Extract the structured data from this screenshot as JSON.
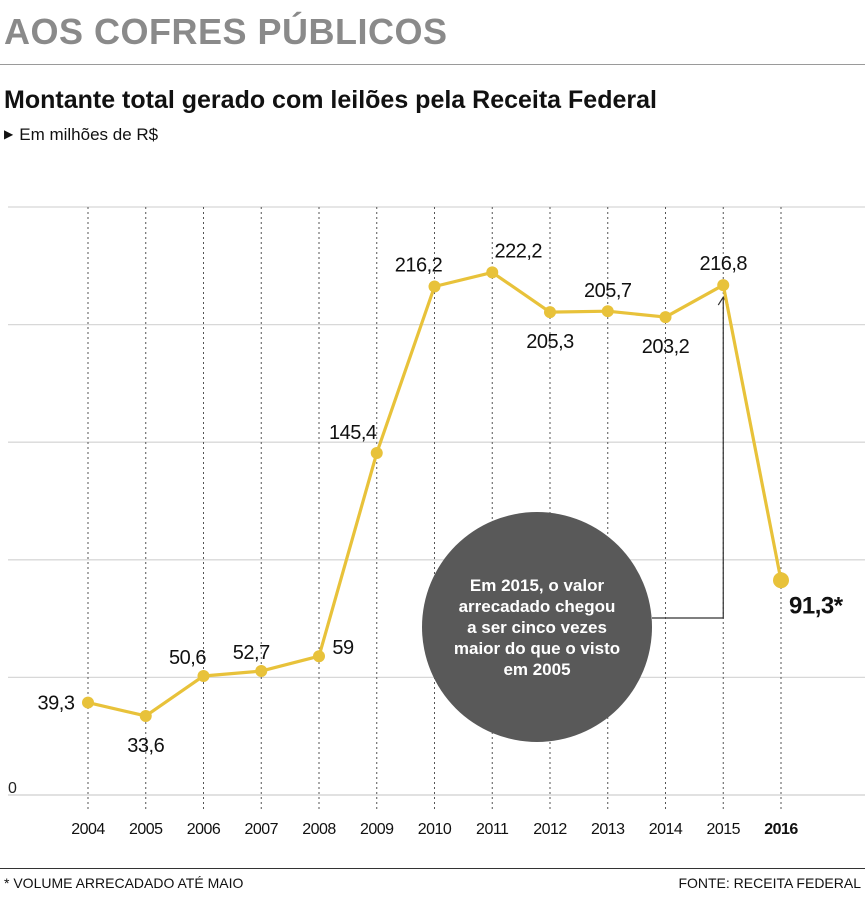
{
  "header": {
    "kicker": "AOS COFRES PÚBLICOS",
    "title": "Montante total gerado com leilões pela Receita Federal",
    "subtitle": "Em milhões de R$"
  },
  "annotation": {
    "text": "Em 2015, o valor arrecadado chegou a ser cinco vezes maior do que o visto em 2005"
  },
  "footer": {
    "footnote": "* VOLUME ARRECADADO ATÉ MAIO",
    "source": "FONTE: RECEITA FEDERAL"
  },
  "chart_data": {
    "type": "line",
    "title": "Montante total gerado com leilões pela Receita Federal",
    "subtitle": "Em milhões de R$",
    "categories": [
      "2004",
      "2005",
      "2006",
      "2007",
      "2008",
      "2009",
      "2010",
      "2011",
      "2012",
      "2013",
      "2014",
      "2015",
      "2016"
    ],
    "values": [
      39.3,
      33.6,
      50.6,
      52.7,
      59,
      145.4,
      216.2,
      222.2,
      205.3,
      205.7,
      203.2,
      216.8,
      91.3
    ],
    "value_labels": [
      "39,3",
      "33,6",
      "50,6",
      "52,7",
      "59",
      "145,4",
      "216,2",
      "222,2",
      "205,3",
      "205,7",
      "203,2",
      "216,8",
      "91,3*"
    ],
    "ylim": [
      0,
      250
    ],
    "y_tick_labels": [
      "0"
    ],
    "grid": "horizontal solid, vertical dotted",
    "highlight_category": "2016",
    "line_color": "#e8c23a",
    "grid_color": "#d8d8d8"
  }
}
